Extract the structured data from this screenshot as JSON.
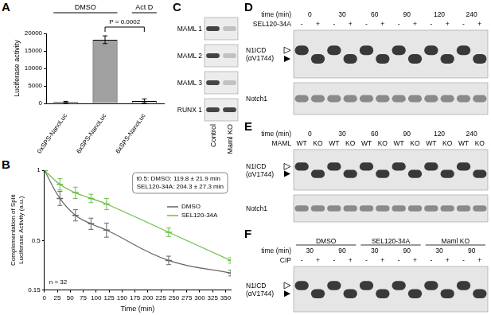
{
  "chart_data": [
    {
      "type": "bar",
      "title": "A",
      "ylabel": "Luciferase activity",
      "categories": [
        "0xSPS-NanoLuc",
        "6xSPS-NanoLuc",
        "6xSPS-NanoLuc"
      ],
      "values": [
        400,
        18200,
        700
      ],
      "errors": [
        200,
        1100,
        600
      ],
      "colors": [
        "#d9d9d9",
        "#a0a0a0",
        "#d9d9d9"
      ],
      "ylim": [
        0,
        20000
      ],
      "yticks": [
        0,
        5000,
        10000,
        15000,
        20000
      ],
      "grid": false,
      "groups": [
        {
          "name": "DMSO",
          "categories": [
            0,
            1
          ]
        },
        {
          "name": "Act D",
          "categories": [
            2
          ]
        }
      ],
      "annotations": [
        {
          "text": "P = 0.0002",
          "categories": [
            1,
            2
          ]
        }
      ]
    },
    {
      "type": "line",
      "title": "B",
      "xlabel": "Time (min)",
      "ylabel": [
        "Complementation of Split",
        "Luciferase Activity (a.u.)"
      ],
      "x": [
        0,
        30,
        60,
        90,
        120,
        240,
        360
      ],
      "series": [
        {
          "name": "DMSO",
          "color": "#666666",
          "values": [
            1,
            0.8,
            0.68,
            0.62,
            0.575,
            0.36,
            0.27
          ],
          "errors": [
            0,
            0.05,
            0.04,
            0.04,
            0.05,
            0.03,
            0.02
          ]
        },
        {
          "name": "SEL120-34A",
          "color": "#6abf45",
          "values": [
            1,
            0.9,
            0.84,
            0.8,
            0.76,
            0.56,
            0.36
          ],
          "errors": [
            0,
            0.04,
            0.04,
            0.03,
            0.04,
            0.03,
            0.02
          ]
        }
      ],
      "xlim": [
        0,
        360
      ],
      "xticks": [
        0,
        25,
        50,
        75,
        100,
        125,
        150,
        175,
        200,
        225,
        250,
        275,
        300,
        325,
        350
      ],
      "ylim": [
        0.15,
        1
      ],
      "yticks": [
        0.15,
        0.5,
        1
      ],
      "grid": false,
      "legend": "right",
      "marker": "dash",
      "annotations": [
        {
          "lines": [
            "t0.5: DMSO: 119.8 ± 21.9 min",
            "SEL120-34A: 204.3 ± 27.3 min"
          ]
        },
        {
          "lines": [
            "n = 32"
          ]
        }
      ]
    }
  ],
  "blots": [
    {
      "panel": "C",
      "rows": [
        "MAML 1",
        "MAML 2",
        "MAML 3",
        "RUNX 1"
      ],
      "lanes": [
        "Control",
        "Maml KO"
      ]
    },
    {
      "panel": "D",
      "header": [
        {
          "label": "time (min)",
          "values": [
            0,
            30,
            60,
            90,
            120,
            240
          ]
        },
        {
          "label": "SEL120-34A",
          "values": [
            "-",
            "+"
          ]
        }
      ],
      "blots": [
        [
          "N1ICD",
          "(αV1744)"
        ],
        [
          "Notch1"
        ]
      ]
    },
    {
      "panel": "E",
      "header": [
        {
          "label": "time (min)",
          "values": [
            0,
            30,
            60,
            90,
            120,
            240
          ]
        },
        {
          "label": "MAML",
          "values": [
            "WT",
            "KO"
          ]
        }
      ],
      "blots": [
        [
          "N1ICD",
          "(αV1744)"
        ],
        [
          "Notch1"
        ]
      ]
    },
    {
      "panel": "F",
      "header": [
        {
          "values": [
            "DMSO",
            "SEL120-34A",
            "Maml KO"
          ]
        },
        {
          "label": "time (min)",
          "values": [
            30,
            90
          ]
        },
        {
          "label": "CIP",
          "values": [
            "-",
            "+"
          ]
        }
      ],
      "blots": [
        [
          "N1ICD",
          "(αV1744)"
        ]
      ]
    }
  ]
}
